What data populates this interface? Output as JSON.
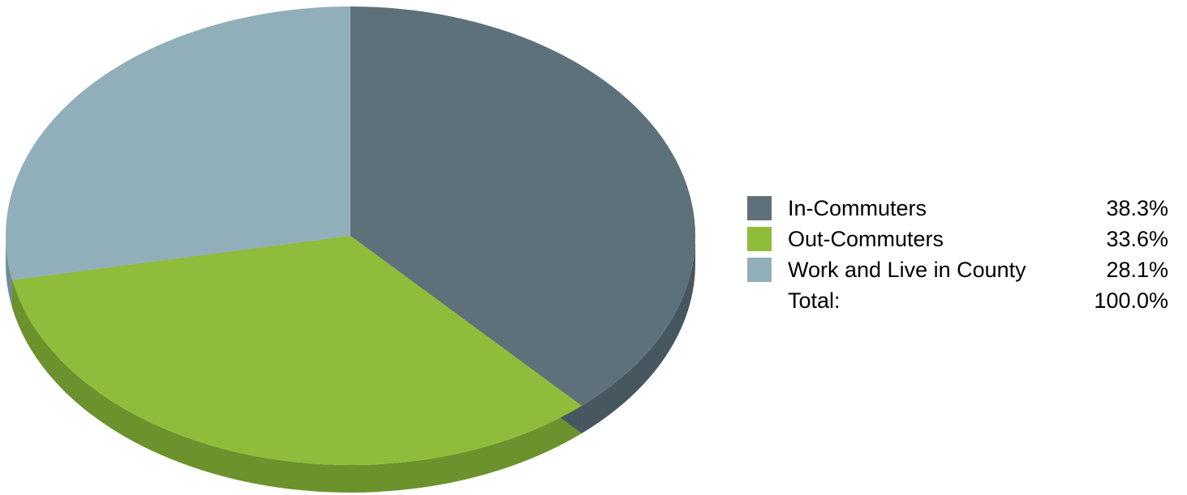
{
  "chart_data": {
    "type": "pie",
    "style": "3d",
    "slices": [
      {
        "label": "In-Commuters",
        "value": 38.3,
        "value_label": "38.3%",
        "color": "#5e717a",
        "side_color": "#47575f"
      },
      {
        "label": "Out-Commuters",
        "value": 33.6,
        "value_label": "33.6%",
        "color": "#8fbc3a",
        "side_color": "#6b922c"
      },
      {
        "label": "Work and Live in County",
        "value": 28.1,
        "value_label": "28.1%",
        "color": "#91afba",
        "side_color": "#6f8c97"
      }
    ],
    "total": {
      "label": "Total:",
      "value": 100.0,
      "value_label": "100.0%"
    },
    "legend_position": "right",
    "start_angle": "top",
    "direction": "clockwise"
  }
}
